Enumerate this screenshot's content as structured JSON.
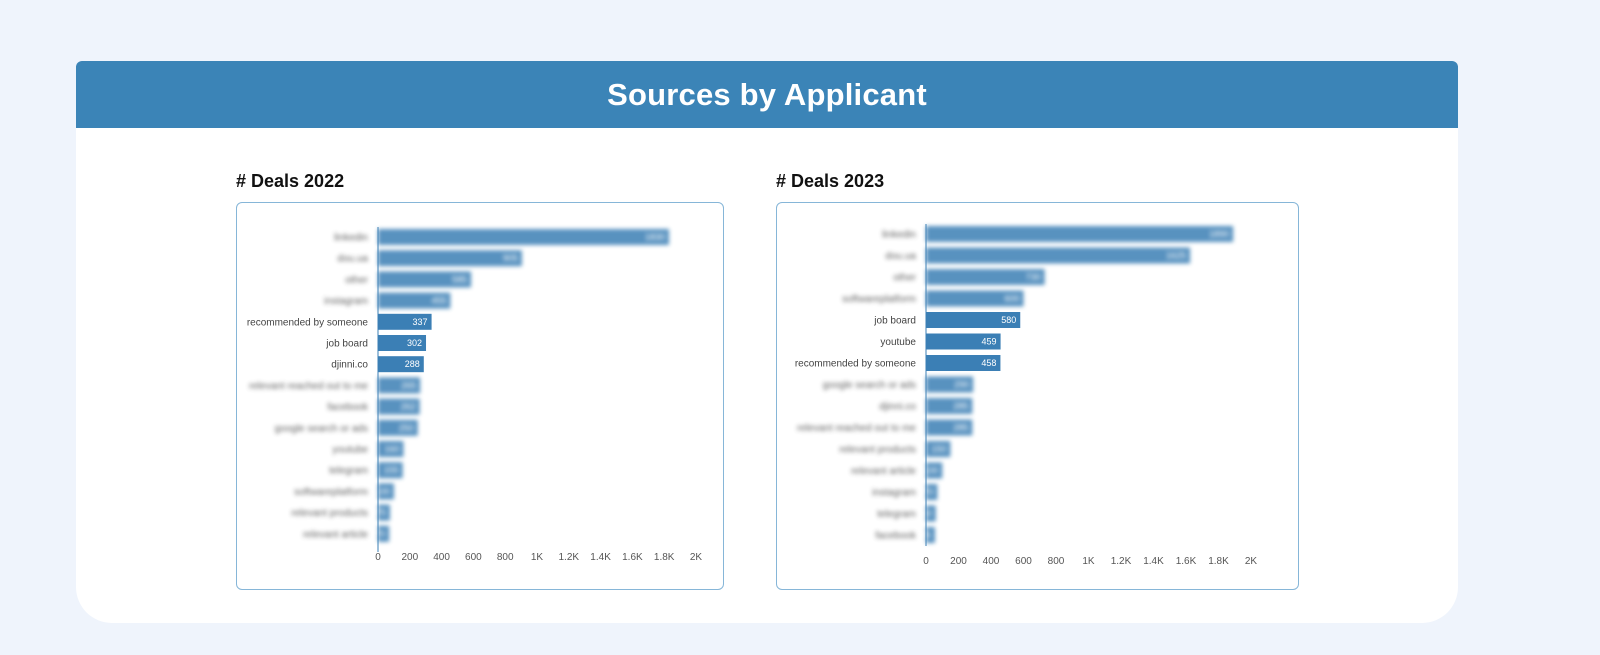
{
  "header": {
    "title": "Sources by Applicant"
  },
  "colors": {
    "bar": "#3b7fb5",
    "header": "#3b84b7",
    "border": "#86b6d8"
  },
  "chart_data": [
    {
      "type": "bar",
      "orientation": "horizontal",
      "title": "# Deals 2022",
      "xlim": [
        0,
        2000
      ],
      "x_ticks": [
        0,
        200,
        400,
        600,
        800,
        1000,
        1200,
        1400,
        1600,
        1800,
        2000
      ],
      "x_tick_labels": [
        "0",
        "200",
        "400",
        "600",
        "800",
        "1K",
        "1.2K",
        "1.4K",
        "1.6K",
        "1.8K",
        "2K"
      ],
      "grid": false,
      "categories": [
        "linkedin",
        "dou.ua",
        "other",
        "instagram",
        "recommended by someone",
        "job board",
        "djinni.co",
        "relevant reached out to me",
        "facebook",
        "google search or ads",
        "youtube",
        "telegram",
        "softwareplatform",
        "relevant products",
        "relevant article"
      ],
      "values": [
        1830,
        905,
        585,
        455,
        337,
        302,
        288,
        265,
        262,
        250,
        160,
        155,
        100,
        75,
        70
      ],
      "visible_value_labels": [
        false,
        false,
        false,
        false,
        true,
        true,
        true,
        false,
        false,
        false,
        false,
        false,
        false,
        false,
        false
      ],
      "redacted": [
        true,
        true,
        true,
        true,
        false,
        false,
        false,
        true,
        true,
        true,
        true,
        true,
        true,
        true,
        true
      ]
    },
    {
      "type": "bar",
      "orientation": "horizontal",
      "title": "# Deals 2023",
      "xlim": [
        0,
        2000
      ],
      "x_ticks": [
        0,
        200,
        400,
        600,
        800,
        1000,
        1200,
        1400,
        1600,
        1800,
        2000
      ],
      "x_tick_labels": [
        "0",
        "200",
        "400",
        "600",
        "800",
        "1K",
        "1.2K",
        "1.4K",
        "1.6K",
        "1.8K",
        "2K"
      ],
      "grid": false,
      "categories": [
        "linkedin",
        "dou.ua",
        "other",
        "softwareplatform",
        "job board",
        "youtube",
        "recommended by someone",
        "google search or ads",
        "djinni.co",
        "relevant reached out to me",
        "relevant products",
        "relevant article",
        "instagram",
        "telegram",
        "facebook"
      ],
      "values": [
        1890,
        1625,
        730,
        600,
        580,
        459,
        458,
        290,
        285,
        285,
        150,
        100,
        70,
        60,
        55
      ],
      "visible_value_labels": [
        false,
        false,
        false,
        false,
        true,
        true,
        true,
        false,
        false,
        false,
        false,
        false,
        false,
        false,
        false
      ],
      "redacted": [
        true,
        true,
        true,
        true,
        false,
        false,
        false,
        true,
        true,
        true,
        true,
        true,
        true,
        true,
        true
      ]
    }
  ]
}
